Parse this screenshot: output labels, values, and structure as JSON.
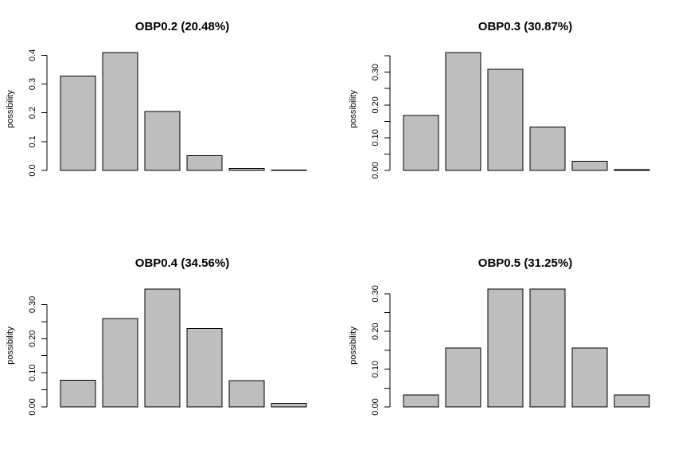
{
  "figure": {
    "background": "#ffffff",
    "bar_fill": "#bebebe",
    "bar_stroke": "#000000",
    "axis_color": "#000000",
    "text_color": "#000000"
  },
  "chart_data": [
    {
      "type": "bar",
      "title": "OBP0.2 (20.48%)",
      "xlabel": "",
      "ylabel": "possibility",
      "values": [
        0.32768,
        0.4096,
        0.2048,
        0.0512,
        0.0064,
        0.00032
      ],
      "ylim": [
        0,
        0.4096
      ],
      "grid": false,
      "legend": null,
      "yticks": [
        {
          "value": 0.0,
          "label": "0.0"
        },
        {
          "value": 0.1,
          "label": "0.1"
        },
        {
          "value": 0.2,
          "label": "0.2"
        },
        {
          "value": 0.3,
          "label": "0.3"
        },
        {
          "value": 0.4,
          "label": "0.4"
        }
      ]
    },
    {
      "type": "bar",
      "title": "OBP0.3 (30.87%)",
      "xlabel": "",
      "ylabel": "possibility",
      "values": [
        0.16807,
        0.36015,
        0.3087,
        0.1323,
        0.02835,
        0.00243
      ],
      "ylim": [
        0,
        0.36015
      ],
      "grid": false,
      "legend": null,
      "yticks": [
        {
          "value": 0.0,
          "label": "0.00"
        },
        {
          "value": 0.05,
          "label": ""
        },
        {
          "value": 0.1,
          "label": "0.10"
        },
        {
          "value": 0.15,
          "label": ""
        },
        {
          "value": 0.2,
          "label": "0.20"
        },
        {
          "value": 0.25,
          "label": ""
        },
        {
          "value": 0.3,
          "label": "0.30"
        },
        {
          "value": 0.35,
          "label": ""
        }
      ]
    },
    {
      "type": "bar",
      "title": "OBP0.4 (34.56%)",
      "xlabel": "",
      "ylabel": "possibility",
      "values": [
        0.07776,
        0.2592,
        0.3456,
        0.2304,
        0.0768,
        0.01024
      ],
      "ylim": [
        0,
        0.3456
      ],
      "grid": false,
      "legend": null,
      "yticks": [
        {
          "value": 0.0,
          "label": "0.00"
        },
        {
          "value": 0.05,
          "label": ""
        },
        {
          "value": 0.1,
          "label": "0.10"
        },
        {
          "value": 0.15,
          "label": ""
        },
        {
          "value": 0.2,
          "label": "0.20"
        },
        {
          "value": 0.25,
          "label": ""
        },
        {
          "value": 0.3,
          "label": "0.30"
        }
      ]
    },
    {
      "type": "bar",
      "title": "OBP0.5 (31.25%)",
      "xlabel": "",
      "ylabel": "possibility",
      "values": [
        0.03125,
        0.15625,
        0.3125,
        0.3125,
        0.15625,
        0.03125
      ],
      "ylim": [
        0,
        0.3125
      ],
      "grid": false,
      "legend": null,
      "yticks": [
        {
          "value": 0.0,
          "label": "0.00"
        },
        {
          "value": 0.05,
          "label": ""
        },
        {
          "value": 0.1,
          "label": "0.10"
        },
        {
          "value": 0.15,
          "label": ""
        },
        {
          "value": 0.2,
          "label": "0.20"
        },
        {
          "value": 0.25,
          "label": ""
        },
        {
          "value": 0.3,
          "label": "0.30"
        }
      ]
    }
  ]
}
